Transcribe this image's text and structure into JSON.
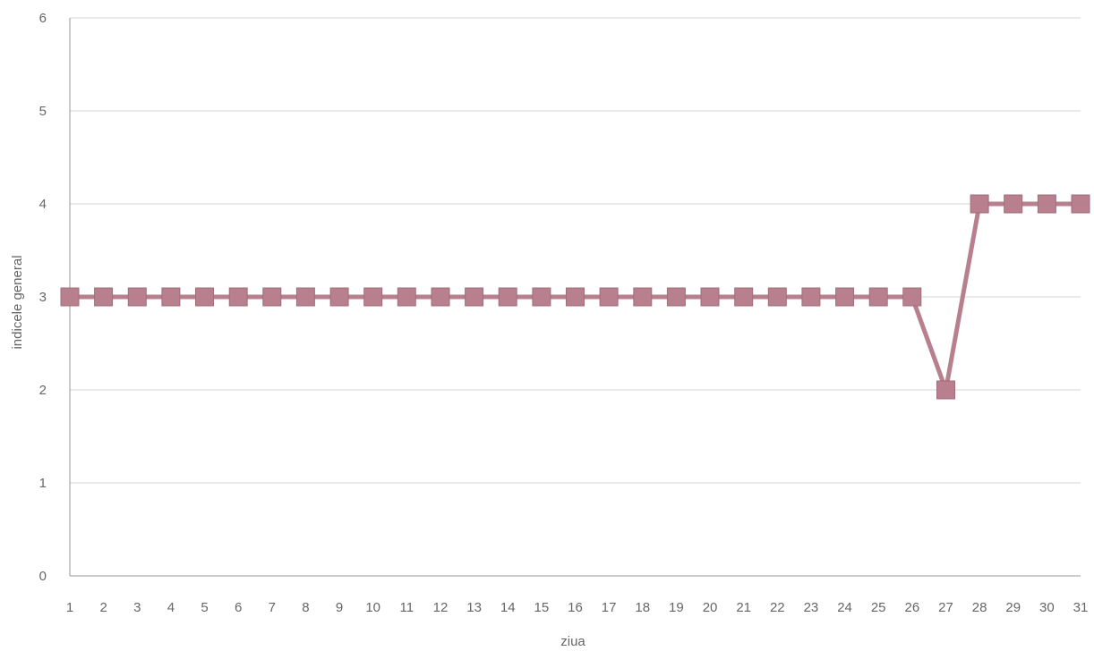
{
  "chart_data": {
    "type": "line",
    "title": "",
    "xlabel": "ziua",
    "ylabel": "indicele general",
    "x": [
      1,
      2,
      3,
      4,
      5,
      6,
      7,
      8,
      9,
      10,
      11,
      12,
      13,
      14,
      15,
      16,
      17,
      18,
      19,
      20,
      21,
      22,
      23,
      24,
      25,
      26,
      27,
      28,
      29,
      30,
      31
    ],
    "series": [
      {
        "values": [
          3,
          3,
          3,
          3,
          3,
          3,
          3,
          3,
          3,
          3,
          3,
          3,
          3,
          3,
          3,
          3,
          3,
          3,
          3,
          3,
          3,
          3,
          3,
          3,
          3,
          3,
          2,
          4,
          4,
          4,
          4
        ],
        "color": "#b87f8e",
        "marker": "square"
      }
    ],
    "ylim": [
      0,
      6
    ],
    "yticks": [
      "0",
      "1",
      "2",
      "3",
      "4",
      "5",
      "6"
    ],
    "xticks": [
      "1",
      "2",
      "3",
      "4",
      "5",
      "6",
      "7",
      "8",
      "9",
      "10",
      "11",
      "12",
      "13",
      "14",
      "15",
      "16",
      "17",
      "18",
      "19",
      "20",
      "21",
      "22",
      "23",
      "24",
      "25",
      "26",
      "27",
      "28",
      "29",
      "30",
      "31"
    ],
    "grid": true,
    "legend": "none"
  }
}
